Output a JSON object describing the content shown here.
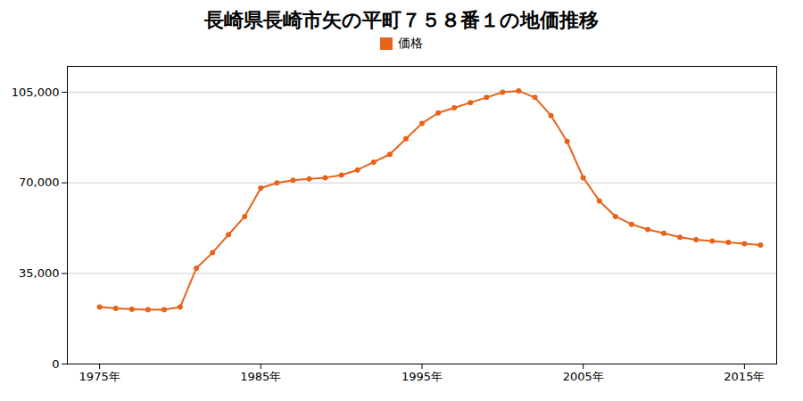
{
  "chart_data": {
    "type": "line",
    "title": "長崎県長崎市矢の平町７５８番１の地価推移",
    "x": [
      1975,
      1976,
      1977,
      1978,
      1979,
      1980,
      1981,
      1982,
      1983,
      1984,
      1985,
      1986,
      1987,
      1988,
      1989,
      1990,
      1991,
      1992,
      1993,
      1994,
      1995,
      1996,
      1997,
      1998,
      1999,
      2000,
      2001,
      2002,
      2003,
      2004,
      2005,
      2006,
      2007,
      2008,
      2009,
      2010,
      2011,
      2012,
      2013,
      2014,
      2015,
      2016
    ],
    "series": [
      {
        "name": "価格",
        "color": "#E8621A",
        "marker": "circle",
        "values": [
          22000,
          21500,
          21200,
          21000,
          21000,
          22000,
          37000,
          43000,
          50000,
          57000,
          68000,
          70000,
          71000,
          71500,
          72000,
          73000,
          75000,
          78000,
          81000,
          87000,
          93000,
          97000,
          99000,
          101000,
          103000,
          105000,
          105500,
          103000,
          96000,
          86000,
          72000,
          63000,
          57000,
          54000,
          52000,
          50500,
          49000,
          48000,
          47500,
          47000,
          46500,
          46000
        ]
      }
    ],
    "xlim": [
      1973,
      2017
    ],
    "xticks": [
      {
        "value": 1975,
        "label": "1975年"
      },
      {
        "value": 1985,
        "label": "1985年"
      },
      {
        "value": 1995,
        "label": "1995年"
      },
      {
        "value": 2005,
        "label": "2005年"
      },
      {
        "value": 2015,
        "label": "2015年"
      }
    ],
    "ylim": [
      0,
      115000
    ],
    "yticks": [
      0,
      {
        "value": 35000,
        "label": "35,000"
      },
      {
        "value": 70000,
        "label": "70,000"
      },
      {
        "value": 105000,
        "label": "105,000"
      }
    ],
    "grid": "y",
    "legend": "top"
  }
}
